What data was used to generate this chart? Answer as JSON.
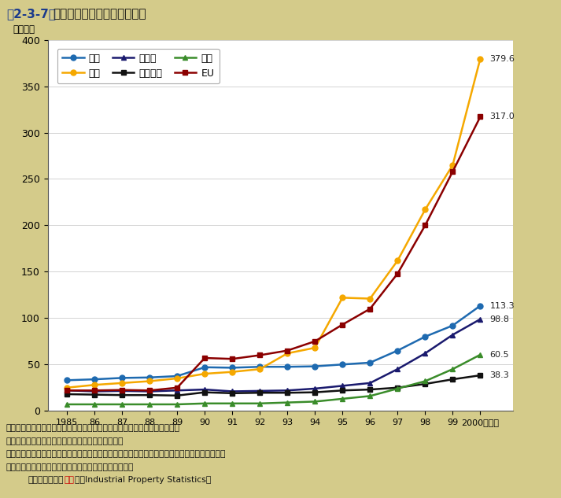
{
  "title_part1": "第2-3-7図",
  "title_part2": "主要国の特許出願件数の推移",
  "ylabel": "（万件）",
  "background_color": "#d4cb8a",
  "plot_bg_color": "#ffffff",
  "years": [
    1985,
    1986,
    1987,
    1988,
    1989,
    1990,
    1991,
    1992,
    1993,
    1994,
    1995,
    1996,
    1997,
    1998,
    1999,
    2000
  ],
  "series_order": [
    "日本",
    "米国",
    "ドイツ",
    "フランス",
    "英国",
    "EU"
  ],
  "series": {
    "日本": {
      "color": "#1e6ab0",
      "marker": "o",
      "markercolor": "#1e6ab0",
      "values": [
        33.0,
        34.0,
        35.5,
        36.0,
        37.5,
        47.0,
        46.5,
        47.5,
        47.5,
        48.0,
        50.0,
        52.0,
        65.0,
        80.0,
        92.0,
        113.3
      ]
    },
    "米国": {
      "color": "#f5a800",
      "marker": "o",
      "markercolor": "#f5a800",
      "values": [
        25.0,
        28.0,
        30.0,
        32.0,
        35.0,
        40.0,
        42.0,
        45.0,
        62.0,
        68.0,
        122.0,
        121.0,
        162.0,
        217.0,
        265.0,
        379.6
      ]
    },
    "ドイツ": {
      "color": "#1a1a6e",
      "marker": "^",
      "markercolor": "#1a1a6e",
      "values": [
        22.0,
        21.0,
        21.5,
        21.0,
        22.0,
        23.0,
        21.0,
        21.5,
        22.0,
        24.0,
        27.0,
        30.0,
        45.0,
        62.0,
        82.0,
        98.8
      ]
    },
    "フランス": {
      "color": "#111111",
      "marker": "s",
      "markercolor": "#111111",
      "values": [
        18.0,
        17.5,
        17.0,
        17.0,
        16.5,
        20.0,
        19.0,
        19.5,
        19.5,
        20.0,
        22.0,
        23.0,
        25.0,
        29.0,
        34.0,
        38.3
      ]
    },
    "英国": {
      "color": "#3a8c2a",
      "marker": "^",
      "markercolor": "#3a8c2a",
      "values": [
        7.0,
        7.0,
        7.0,
        7.0,
        7.0,
        8.0,
        8.0,
        8.0,
        9.0,
        10.0,
        13.0,
        16.0,
        24.0,
        32.0,
        45.0,
        60.5
      ]
    },
    "EU": {
      "color": "#8b0000",
      "marker": "s",
      "markercolor": "#8b0000",
      "values": [
        22.0,
        22.0,
        22.5,
        22.0,
        25.0,
        57.0,
        56.0,
        60.0,
        65.0,
        75.0,
        93.0,
        110.0,
        148.0,
        200.0,
        258.0,
        317.0
      ]
    }
  },
  "ylim": [
    0,
    400
  ],
  "yticks": [
    0,
    50,
    100,
    150,
    200,
    250,
    300,
    350,
    400
  ],
  "end_labels": {
    "米国": 379.6,
    "EU": 317.0,
    "日本": 113.3,
    "ドイツ": 98.8,
    "英国": 60.5,
    "フランス": 38.3
  },
  "footnote1": "注）１．出願人の国籍別に対自国及び対外国に出願がなされた件数の合計値",
  "footnote2": "　　２．ＥＵの数値は現在の加盟１５か国の合計値",
  "footnote3": "　　３．ＰＣＴ（特許協力条約）出願及びＥＰＣ（欧州特許条約）出願による指定件数を含む。",
  "footnote4": "資料：特許庁「特許庁年報」、「特許行政年次報告書」",
  "footnote5_pre": "　　ＷＩＰＯ（",
  "footnote5_note": "注３",
  "footnote5_post": "）「Industrial Property Statistics」"
}
